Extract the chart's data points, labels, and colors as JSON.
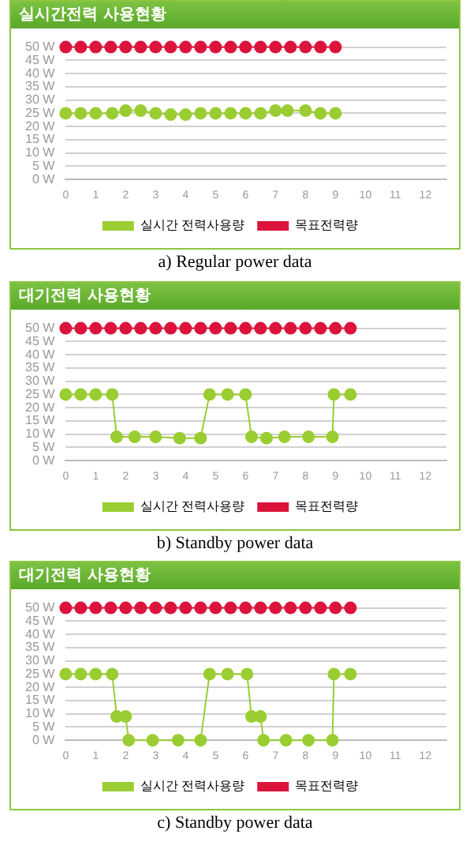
{
  "chart_data": [
    {
      "type": "line",
      "title": "실시간전력 사용현황",
      "annotations": [
        "a) Regular power data"
      ],
      "xlim": [
        0,
        12.7
      ],
      "xticks": [
        0,
        1,
        2,
        3,
        4,
        5,
        6,
        7,
        8,
        9,
        10,
        11,
        12
      ],
      "ylim": [
        0,
        50
      ],
      "yticks": [
        {
          "value": 0,
          "label": "0 W"
        },
        {
          "value": 5,
          "label": "5 W"
        },
        {
          "value": 10,
          "label": "10 W"
        },
        {
          "value": 15,
          "label": "15 W"
        },
        {
          "value": 20,
          "label": "20 W"
        },
        {
          "value": 25,
          "label": "25 W"
        },
        {
          "value": 30,
          "label": "30 W"
        },
        {
          "value": 35,
          "label": "35 W"
        },
        {
          "value": 40,
          "label": "40 W"
        },
        {
          "value": 45,
          "label": "45 W"
        },
        {
          "value": 50,
          "label": "50 W"
        }
      ],
      "grid": "y",
      "legend": "bottom",
      "marker": "circle",
      "series": [
        {
          "name": "실시간 전력사용량",
          "color": "#9acd32",
          "x": [
            0,
            0.5,
            1,
            1.55,
            2,
            2.5,
            3,
            3.5,
            4,
            4.5,
            5,
            5.5,
            6,
            6.5,
            7,
            7.4,
            8,
            8.5,
            9
          ],
          "values": [
            25,
            25,
            25,
            25,
            26,
            26,
            25,
            24.5,
            24.5,
            25,
            25,
            25,
            25,
            25,
            26,
            26,
            26,
            25,
            25
          ]
        },
        {
          "name": "목표전력량",
          "color": "#dc143c",
          "x": [
            0,
            0.5,
            1,
            1.5,
            2,
            2.5,
            3,
            3.5,
            4,
            4.5,
            5,
            5.5,
            6,
            6.5,
            7,
            7.5,
            8,
            8.5,
            9
          ],
          "values": [
            50,
            50,
            50,
            50,
            50,
            50,
            50,
            50,
            50,
            50,
            50,
            50,
            50,
            50,
            50,
            50,
            50,
            50,
            50
          ]
        }
      ]
    },
    {
      "type": "line",
      "title": "대기전력 사용현황",
      "annotations": [
        "b) Standby power data"
      ],
      "xlim": [
        0,
        12.7
      ],
      "xticks": [
        0,
        1,
        2,
        3,
        4,
        5,
        6,
        7,
        8,
        9,
        10,
        11,
        12
      ],
      "ylim": [
        0,
        50
      ],
      "yticks": [
        {
          "value": 0,
          "label": "0 W"
        },
        {
          "value": 5,
          "label": "5 W"
        },
        {
          "value": 10,
          "label": "10 W"
        },
        {
          "value": 15,
          "label": "15 W"
        },
        {
          "value": 20,
          "label": "20 W"
        },
        {
          "value": 25,
          "label": "25 W"
        },
        {
          "value": 30,
          "label": "30 W"
        },
        {
          "value": 35,
          "label": "35 W"
        },
        {
          "value": 40,
          "label": "40 W"
        },
        {
          "value": 45,
          "label": "45 W"
        },
        {
          "value": 50,
          "label": "50 W"
        }
      ],
      "grid": "y",
      "legend": "bottom",
      "marker": "circle",
      "series": [
        {
          "name": "실시간 전력사용량",
          "color": "#9acd32",
          "x": [
            0,
            0.5,
            1,
            1.55,
            1.7,
            2.3,
            3,
            3.8,
            4.5,
            4.8,
            5.4,
            6,
            6.2,
            6.7,
            7.3,
            8.1,
            8.9,
            8.95,
            9.5
          ],
          "values": [
            25,
            25,
            25,
            25,
            9,
            9,
            9,
            8.5,
            8.5,
            25,
            25,
            25,
            9,
            8.5,
            9,
            9,
            9,
            25,
            25
          ]
        },
        {
          "name": "목표전력량",
          "color": "#dc143c",
          "x": [
            0,
            0.5,
            1,
            1.5,
            2,
            2.5,
            3,
            3.5,
            4,
            4.5,
            5,
            5.5,
            6,
            6.5,
            7,
            7.5,
            8,
            8.5,
            9,
            9.5
          ],
          "values": [
            50,
            50,
            50,
            50,
            50,
            50,
            50,
            50,
            50,
            50,
            50,
            50,
            50,
            50,
            50,
            50,
            50,
            50,
            50,
            50
          ]
        }
      ]
    },
    {
      "type": "line",
      "title": "대기전력 사용현황",
      "annotations": [
        "c) Standby power data"
      ],
      "xlim": [
        0,
        12.7
      ],
      "xticks": [
        0,
        1,
        2,
        3,
        4,
        5,
        6,
        7,
        8,
        9,
        10,
        11,
        12
      ],
      "ylim": [
        0,
        50
      ],
      "yticks": [
        {
          "value": 0,
          "label": "0 W"
        },
        {
          "value": 5,
          "label": "5 W"
        },
        {
          "value": 10,
          "label": "10 W"
        },
        {
          "value": 15,
          "label": "15 W"
        },
        {
          "value": 20,
          "label": "20 W"
        },
        {
          "value": 25,
          "label": "25 W"
        },
        {
          "value": 30,
          "label": "30 W"
        },
        {
          "value": 35,
          "label": "35 W"
        },
        {
          "value": 40,
          "label": "40 W"
        },
        {
          "value": 45,
          "label": "45 W"
        },
        {
          "value": 50,
          "label": "50 W"
        }
      ],
      "grid": "y",
      "legend": "bottom",
      "marker": "circle",
      "series": [
        {
          "name": "실시간 전력사용량",
          "color": "#9acd32",
          "x": [
            0,
            0.5,
            1,
            1.55,
            1.7,
            2,
            2.1,
            2.9,
            3.75,
            4.5,
            4.8,
            5.4,
            6.05,
            6.2,
            6.5,
            6.6,
            7.35,
            8.1,
            8.9,
            8.95,
            9.5
          ],
          "values": [
            25,
            25,
            25,
            25,
            9,
            9,
            0,
            0,
            0,
            0,
            25,
            25,
            25,
            9,
            9,
            0,
            0,
            0,
            0,
            25,
            25
          ]
        },
        {
          "name": "목표전력량",
          "color": "#dc143c",
          "x": [
            0,
            0.5,
            1,
            1.5,
            2,
            2.5,
            3,
            3.5,
            4,
            4.5,
            5,
            5.5,
            6,
            6.5,
            7,
            7.5,
            8,
            8.5,
            9,
            9.5
          ],
          "values": [
            50,
            50,
            50,
            50,
            50,
            50,
            50,
            50,
            50,
            50,
            50,
            50,
            50,
            50,
            50,
            50,
            50,
            50,
            50,
            50
          ]
        }
      ]
    }
  ]
}
